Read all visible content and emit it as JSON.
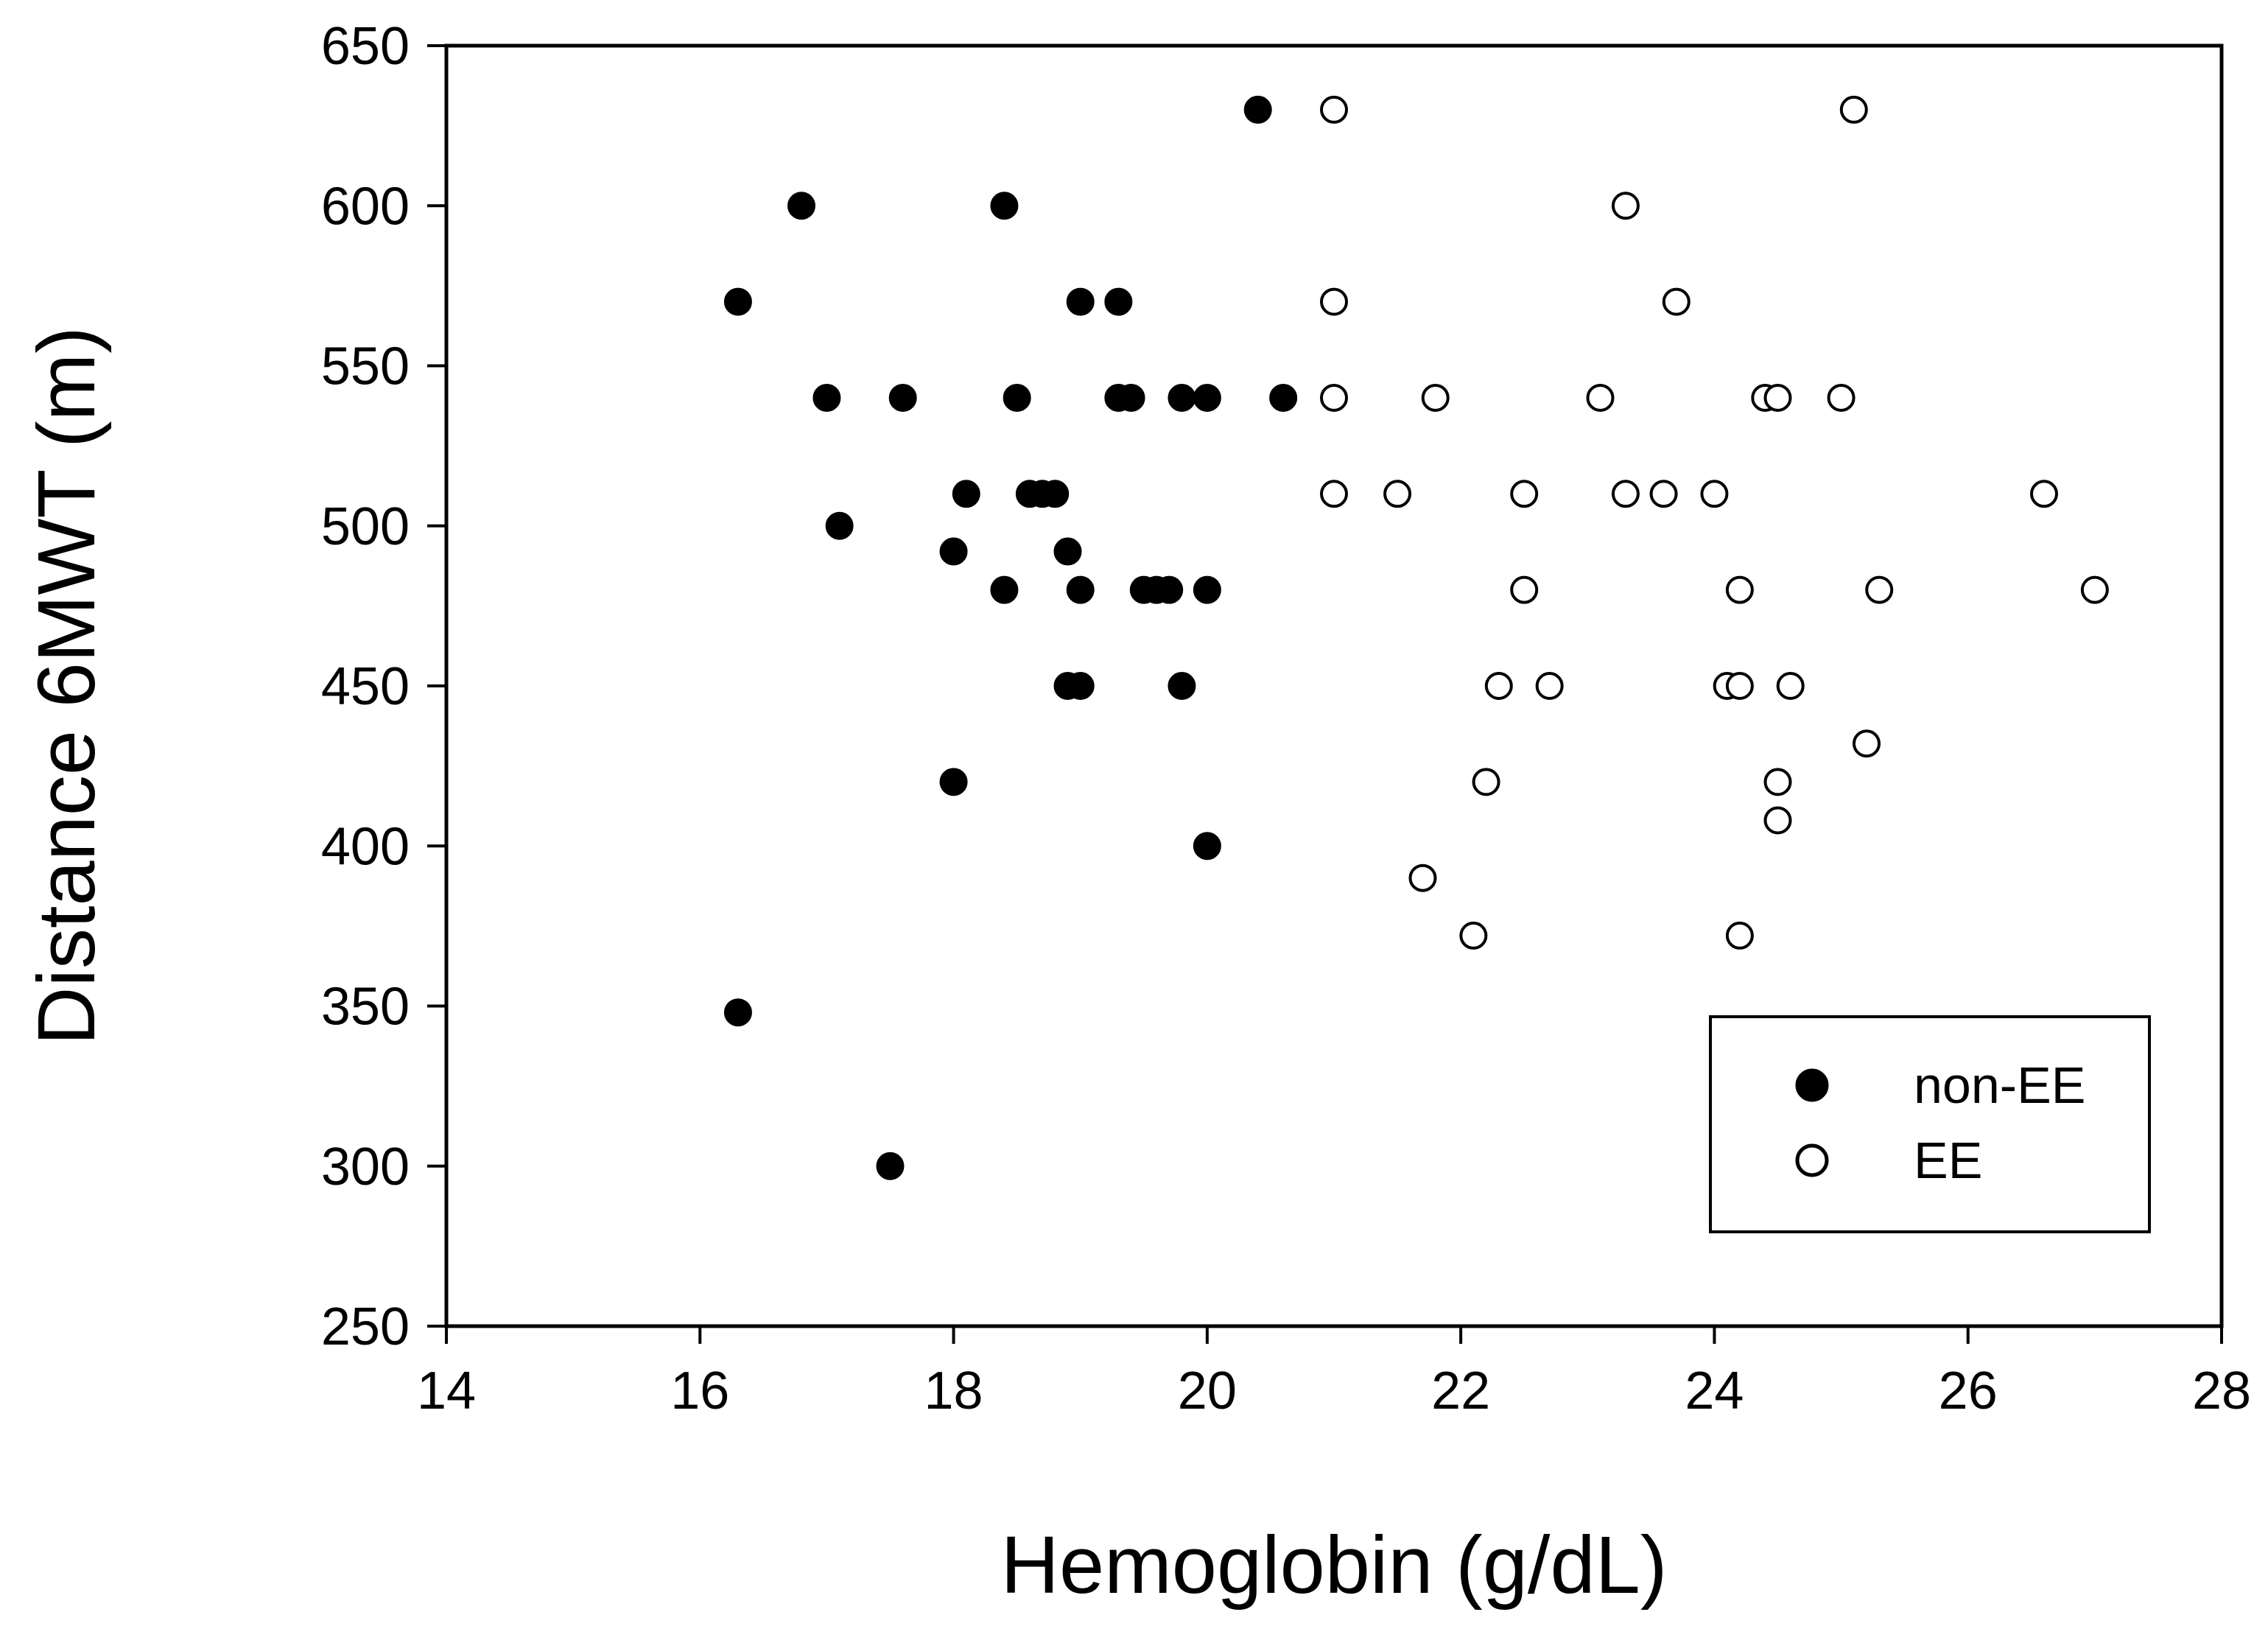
{
  "chart_data": {
    "type": "scatter",
    "title": "",
    "xlabel": "Hemoglobin (g/dL)",
    "ylabel": "Distance 6MWT (m)",
    "xlim": [
      14,
      28
    ],
    "ylim": [
      250,
      650
    ],
    "xticks": [
      14,
      16,
      18,
      20,
      22,
      24,
      26,
      28
    ],
    "yticks": [
      250,
      300,
      350,
      400,
      450,
      500,
      550,
      600,
      650
    ],
    "grid": false,
    "legend_position": "bottom-right",
    "series": [
      {
        "name": "non-EE",
        "marker": "filled-circle",
        "color": "#000000",
        "points": [
          [
            20.4,
            630
          ],
          [
            16.8,
            600
          ],
          [
            18.4,
            600
          ],
          [
            16.3,
            570
          ],
          [
            19.0,
            570
          ],
          [
            19.3,
            570
          ],
          [
            17.0,
            540
          ],
          [
            17.6,
            540
          ],
          [
            18.5,
            540
          ],
          [
            19.3,
            540
          ],
          [
            19.4,
            540
          ],
          [
            19.8,
            540
          ],
          [
            20.0,
            540
          ],
          [
            20.6,
            540
          ],
          [
            18.1,
            510
          ],
          [
            18.6,
            510
          ],
          [
            18.7,
            510
          ],
          [
            18.8,
            510
          ],
          [
            17.1,
            500
          ],
          [
            18.0,
            492
          ],
          [
            18.9,
            492
          ],
          [
            18.4,
            480
          ],
          [
            19.0,
            480
          ],
          [
            19.5,
            480
          ],
          [
            19.6,
            480
          ],
          [
            19.7,
            480
          ],
          [
            20.0,
            480
          ],
          [
            18.9,
            450
          ],
          [
            19.0,
            450
          ],
          [
            19.8,
            450
          ],
          [
            18.0,
            420
          ],
          [
            20.0,
            400
          ],
          [
            16.3,
            348
          ],
          [
            17.5,
            300
          ]
        ]
      },
      {
        "name": "EE",
        "marker": "open-circle",
        "color": "#000000",
        "points": [
          [
            21.0,
            630
          ],
          [
            25.1,
            630
          ],
          [
            23.3,
            600
          ],
          [
            21.0,
            570
          ],
          [
            23.7,
            570
          ],
          [
            21.0,
            540
          ],
          [
            21.8,
            540
          ],
          [
            23.1,
            540
          ],
          [
            24.4,
            540
          ],
          [
            24.5,
            540
          ],
          [
            25.0,
            540
          ],
          [
            21.0,
            510
          ],
          [
            21.5,
            510
          ],
          [
            22.5,
            510
          ],
          [
            23.3,
            510
          ],
          [
            23.6,
            510
          ],
          [
            24.0,
            510
          ],
          [
            26.6,
            510
          ],
          [
            22.5,
            480
          ],
          [
            24.2,
            480
          ],
          [
            25.3,
            480
          ],
          [
            27.0,
            480
          ],
          [
            22.3,
            450
          ],
          [
            22.7,
            450
          ],
          [
            24.1,
            450
          ],
          [
            24.2,
            450
          ],
          [
            24.6,
            450
          ],
          [
            25.2,
            432
          ],
          [
            22.2,
            420
          ],
          [
            24.5,
            420
          ],
          [
            24.5,
            408
          ],
          [
            21.7,
            390
          ],
          [
            22.1,
            372
          ],
          [
            24.2,
            372
          ]
        ]
      }
    ]
  }
}
